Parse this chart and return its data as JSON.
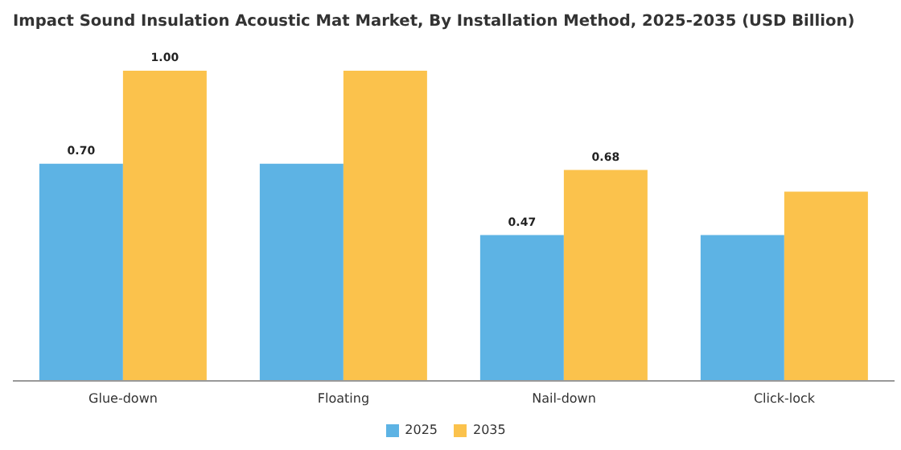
{
  "chart_data": {
    "type": "bar",
    "title": "Impact Sound Insulation Acoustic Mat Market, By Installation Method, 2025-2035 (USD Billion)",
    "categories": [
      "Glue-down",
      "Floating",
      "Nail-down",
      "Click-lock"
    ],
    "series": [
      {
        "name": "2025",
        "color": "#5db3e4",
        "values": [
          0.7,
          0.7,
          0.47,
          0.47
        ],
        "value_labels": [
          "0.70",
          null,
          "0.47",
          null
        ]
      },
      {
        "name": "2035",
        "color": "#fbc24c",
        "values": [
          1.0,
          1.0,
          0.68,
          0.61
        ],
        "value_labels": [
          "1.00",
          null,
          "0.68",
          null
        ]
      }
    ],
    "legend": "bottom",
    "grid": false
  }
}
